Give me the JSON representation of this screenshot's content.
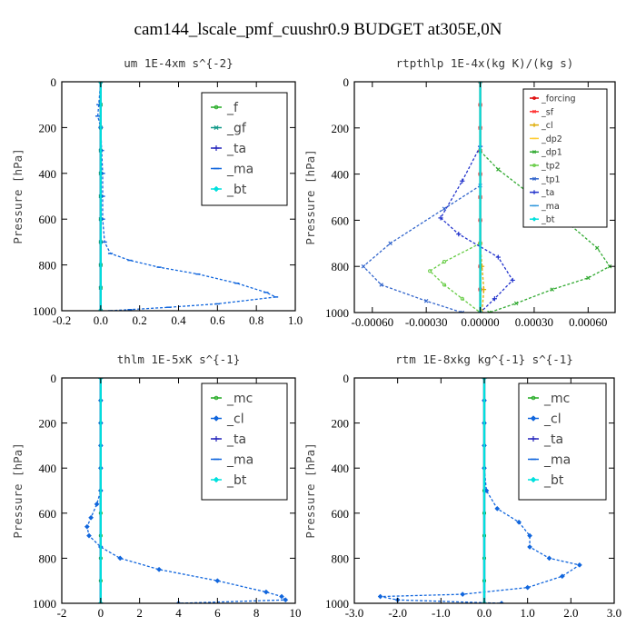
{
  "figure": {
    "title": "cam144_lscale_pmf_cuushr0.9  BUDGET at305E,0N"
  },
  "chart_data": [
    {
      "id": "um",
      "type": "line",
      "title": "um   1E-4xm s^{-2}",
      "ylabel": "Pressure [hPa]",
      "xlim": [
        -0.2,
        1.0
      ],
      "ylim": [
        1000,
        0
      ],
      "x_ticks": [
        -0.2,
        0.0,
        0.2,
        0.4,
        0.6,
        0.8,
        1.0
      ],
      "x_tick_labels": [
        "-0.2",
        "0.0",
        "0.2",
        "0.4",
        "0.6",
        "0.8",
        "1.0"
      ],
      "y_ticks": [
        0,
        200,
        400,
        600,
        800,
        1000
      ],
      "legend_style": "large",
      "legend_position": "top-right",
      "series": [
        {
          "name": "_f",
          "color": "#22aa22",
          "marker": "circle",
          "values": [
            [
              0,
              0
            ],
            [
              0,
              100
            ],
            [
              0,
              200
            ],
            [
              0,
              300
            ],
            [
              0,
              400
            ],
            [
              0,
              500
            ],
            [
              0,
              600
            ],
            [
              0,
              700
            ],
            [
              0,
              800
            ],
            [
              0,
              900
            ],
            [
              0,
              1000
            ]
          ]
        },
        {
          "name": "_gf",
          "color": "#119988",
          "marker": "x",
          "values": [
            [
              0,
              0
            ],
            [
              0,
              100
            ],
            [
              0,
              200
            ],
            [
              0,
              300
            ],
            [
              0,
              400
            ],
            [
              0,
              500
            ],
            [
              0,
              600
            ],
            [
              0,
              700
            ],
            [
              0,
              800
            ],
            [
              0,
              900
            ],
            [
              0,
              1000
            ]
          ]
        },
        {
          "name": "_ta",
          "color": "#2222bb",
          "marker": "plus",
          "values": [
            [
              0,
              0
            ],
            [
              0,
              1000
            ]
          ]
        },
        {
          "name": "_ma",
          "color": "#1166dd",
          "marker": "dash",
          "values": [
            [
              0,
              0
            ],
            [
              -0.01,
              100
            ],
            [
              -0.015,
              150
            ],
            [
              0,
              200
            ],
            [
              0.005,
              300
            ],
            [
              0.01,
              400
            ],
            [
              0.01,
              500
            ],
            [
              0.01,
              600
            ],
            [
              0.02,
              700
            ],
            [
              0.05,
              750
            ],
            [
              0.15,
              780
            ],
            [
              0.3,
              810
            ],
            [
              0.5,
              840
            ],
            [
              0.7,
              880
            ],
            [
              0.85,
              920
            ],
            [
              0.9,
              940
            ],
            [
              0.6,
              970
            ],
            [
              0.35,
              985
            ],
            [
              0.15,
              995
            ],
            [
              0.05,
              1000
            ]
          ]
        },
        {
          "name": "_bt",
          "color": "#00e0dd",
          "marker": "diamond",
          "values": [
            [
              0,
              0
            ],
            [
              0,
              1000
            ]
          ]
        }
      ]
    },
    {
      "id": "rtpthlp",
      "type": "line",
      "title": "rtpthlp   1E-4x(kg K)/(kg s)",
      "ylabel": "Pressure [hPa]",
      "xlim": [
        -0.0007,
        0.00075
      ],
      "ylim": [
        1000,
        0
      ],
      "x_ticks": [
        -0.0006,
        -0.0003,
        0.0,
        0.0003,
        0.0006
      ],
      "x_tick_labels": [
        "-0.00060",
        "-0.00030",
        "0.00000",
        "0.00030",
        "0.00060"
      ],
      "y_ticks": [
        0,
        200,
        400,
        600,
        800,
        1000
      ],
      "legend_style": "small",
      "legend_position": "top-right",
      "series": [
        {
          "name": "_forcing",
          "color": "#dd0000",
          "marker": "circle",
          "values": [
            [
              0,
              0
            ],
            [
              0,
              100
            ],
            [
              0,
              200
            ],
            [
              0,
              300
            ],
            [
              0,
              400
            ],
            [
              0,
              500
            ],
            [
              0,
              600
            ],
            [
              0,
              700
            ],
            [
              0,
              800
            ],
            [
              0,
              900
            ],
            [
              0,
              1000
            ]
          ]
        },
        {
          "name": "_sf",
          "color": "#ff3333",
          "marker": "x",
          "values": [
            [
              0,
              0
            ],
            [
              0,
              100
            ],
            [
              0,
              200
            ],
            [
              0,
              300
            ],
            [
              0,
              400
            ],
            [
              0,
              500
            ],
            [
              0,
              600
            ],
            [
              0,
              700
            ],
            [
              0,
              800
            ],
            [
              0,
              900
            ],
            [
              0,
              1000
            ]
          ]
        },
        {
          "name": "_cl",
          "color": "#ddaa00",
          "marker": "plus",
          "values": [
            [
              0,
              0
            ],
            [
              0,
              700
            ],
            [
              1e-05,
              800
            ],
            [
              2e-05,
              900
            ],
            [
              1e-05,
              1000
            ]
          ]
        },
        {
          "name": "_dp2",
          "color": "#ffcc33",
          "marker": "dash",
          "values": [
            [
              0,
              0
            ],
            [
              0,
              1000
            ]
          ]
        },
        {
          "name": "_dp1",
          "color": "#33aa33",
          "marker": "x",
          "values": [
            [
              0,
              300
            ],
            [
              0.0001,
              380
            ],
            [
              0.0003,
              500
            ],
            [
              0.0005,
              620
            ],
            [
              0.00065,
              720
            ],
            [
              0.00072,
              800
            ],
            [
              0.0006,
              850
            ],
            [
              0.0004,
              900
            ],
            [
              0.0002,
              960
            ],
            [
              5e-05,
              1000
            ]
          ]
        },
        {
          "name": "_tp2",
          "color": "#66cc44",
          "marker": "circle",
          "values": [
            [
              0,
              700
            ],
            [
              -0.0002,
              780
            ],
            [
              -0.00028,
              820
            ],
            [
              -0.0002,
              880
            ],
            [
              -0.0001,
              940
            ],
            [
              0,
              1000
            ]
          ]
        },
        {
          "name": "_tp1",
          "color": "#3366cc",
          "marker": "x",
          "values": [
            [
              0,
              450
            ],
            [
              -0.0002,
              550
            ],
            [
              -0.0005,
              700
            ],
            [
              -0.00065,
              800
            ],
            [
              -0.00055,
              880
            ],
            [
              -0.0003,
              950
            ],
            [
              -0.0001,
              1000
            ]
          ]
        },
        {
          "name": "_ta",
          "color": "#2233cc",
          "marker": "plus",
          "values": [
            [
              0,
              280
            ],
            [
              -0.0001,
              430
            ],
            [
              -0.00022,
              590
            ],
            [
              -0.00012,
              660
            ],
            [
              0.0001,
              760
            ],
            [
              0.00018,
              860
            ],
            [
              8e-05,
              940
            ],
            [
              0,
              1000
            ]
          ]
        },
        {
          "name": "_ma",
          "color": "#3399dd",
          "marker": "dash",
          "values": [
            [
              0,
              0
            ],
            [
              0,
              1000
            ]
          ]
        },
        {
          "name": "_bt",
          "color": "#00e0dd",
          "marker": "diamond",
          "values": [
            [
              0,
              0
            ],
            [
              0,
              1000
            ]
          ]
        }
      ]
    },
    {
      "id": "thlm",
      "type": "line",
      "title": "thlm   1E-5xK s^{-1}",
      "ylabel": "Pressure [hPa]",
      "xlim": [
        -2,
        10
      ],
      "ylim": [
        1000,
        0
      ],
      "x_ticks": [
        -2,
        0,
        2,
        4,
        6,
        8,
        10
      ],
      "x_tick_labels": [
        "-2",
        "0",
        "2",
        "4",
        "6",
        "8",
        "10"
      ],
      "y_ticks": [
        0,
        200,
        400,
        600,
        800,
        1000
      ],
      "legend_style": "large",
      "legend_position": "top-right",
      "series": [
        {
          "name": "_mc",
          "color": "#22aa22",
          "marker": "circle",
          "values": [
            [
              0,
              0
            ],
            [
              0,
              100
            ],
            [
              0,
              200
            ],
            [
              0,
              300
            ],
            [
              0,
              400
            ],
            [
              0,
              500
            ],
            [
              0,
              600
            ],
            [
              0,
              700
            ],
            [
              0,
              800
            ],
            [
              0,
              900
            ],
            [
              0,
              1000
            ]
          ]
        },
        {
          "name": "_cl",
          "color": "#1166dd",
          "marker": "diamond",
          "values": [
            [
              0,
              0
            ],
            [
              0,
              100
            ],
            [
              0,
              200
            ],
            [
              0,
              300
            ],
            [
              0,
              400
            ],
            [
              0,
              500
            ],
            [
              -0.2,
              560
            ],
            [
              -0.5,
              620
            ],
            [
              -0.7,
              660
            ],
            [
              -0.6,
              700
            ],
            [
              0,
              750
            ],
            [
              1,
              800
            ],
            [
              3,
              850
            ],
            [
              6,
              900
            ],
            [
              8.5,
              950
            ],
            [
              9.3,
              970
            ],
            [
              9.5,
              985
            ],
            [
              4,
              1000
            ]
          ]
        },
        {
          "name": "_ta",
          "color": "#2222bb",
          "marker": "plus",
          "values": [
            [
              0,
              0
            ],
            [
              0,
              1000
            ]
          ]
        },
        {
          "name": "_ma",
          "color": "#1166dd",
          "marker": "dash",
          "values": [
            [
              0,
              0
            ],
            [
              0,
              1000
            ]
          ]
        },
        {
          "name": "_bt",
          "color": "#00e0dd",
          "marker": "diamond",
          "values": [
            [
              0,
              0
            ],
            [
              0,
              1000
            ]
          ]
        }
      ]
    },
    {
      "id": "rtm",
      "type": "line",
      "title": "rtm   1E-8xkg kg^{-1} s^{-1}",
      "ylabel": "Pressure [hPa]",
      "xlim": [
        -3.0,
        3.0
      ],
      "ylim": [
        1000,
        0
      ],
      "x_ticks": [
        -3,
        -2,
        -1,
        0,
        1,
        2,
        3
      ],
      "x_tick_labels": [
        "-3.0",
        "-2.0",
        "-1.0",
        "0.0",
        "1.0",
        "2.0",
        "3.0"
      ],
      "y_ticks": [
        0,
        200,
        400,
        600,
        800,
        1000
      ],
      "legend_style": "large",
      "legend_position": "top-right",
      "series": [
        {
          "name": "_mc",
          "color": "#22aa22",
          "marker": "circle",
          "values": [
            [
              0,
              0
            ],
            [
              0,
              100
            ],
            [
              0,
              200
            ],
            [
              0,
              300
            ],
            [
              0,
              400
            ],
            [
              0,
              500
            ],
            [
              0,
              600
            ],
            [
              0,
              700
            ],
            [
              0,
              800
            ],
            [
              0,
              900
            ],
            [
              0,
              1000
            ]
          ]
        },
        {
          "name": "_cl",
          "color": "#1166dd",
          "marker": "diamond",
          "values": [
            [
              0,
              0
            ],
            [
              0,
              100
            ],
            [
              0,
              200
            ],
            [
              0,
              300
            ],
            [
              0,
              400
            ],
            [
              0.05,
              500
            ],
            [
              0.3,
              580
            ],
            [
              0.8,
              640
            ],
            [
              1.05,
              700
            ],
            [
              1.05,
              750
            ],
            [
              1.5,
              800
            ],
            [
              2.2,
              830
            ],
            [
              1.8,
              880
            ],
            [
              1.0,
              930
            ],
            [
              -0.5,
              960
            ],
            [
              -2.4,
              970
            ],
            [
              -2.0,
              985
            ],
            [
              0.4,
              1000
            ]
          ]
        },
        {
          "name": "_ta",
          "color": "#2222bb",
          "marker": "plus",
          "values": [
            [
              0,
              0
            ],
            [
              0,
              1000
            ]
          ]
        },
        {
          "name": "_ma",
          "color": "#1166dd",
          "marker": "dash",
          "values": [
            [
              0,
              0
            ],
            [
              0,
              1000
            ]
          ]
        },
        {
          "name": "_bt",
          "color": "#00e0dd",
          "marker": "diamond",
          "values": [
            [
              0,
              0
            ],
            [
              0,
              1000
            ]
          ]
        }
      ]
    }
  ]
}
